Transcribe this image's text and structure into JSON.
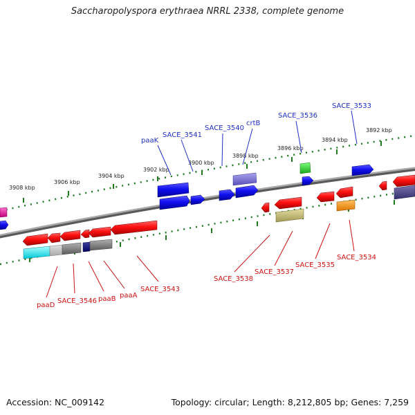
{
  "title": "Saccharopolyspora erythraea NRRL 2338, complete genome",
  "footer": {
    "accession": "Accession: NC_009142",
    "summary": "Topology: circular; Length: 8,212,805 bp; Genes: 7,259"
  },
  "colors": {
    "backbone": "#8a8a8a",
    "tick_track": "#1f7a1f",
    "label_forward": "#1f2fbf",
    "label_reverse": "#cc1111"
  },
  "ticks": [
    "3908 kbp",
    "3906 kbp",
    "3904 kbp",
    "3902 kbp",
    "3900 kbp",
    "3898 kbp",
    "3896 kbp",
    "3894 kbp",
    "3892 kbp"
  ],
  "upper_labels": [
    "paaK",
    "SACE_3541",
    "SACE_3540",
    "crtB",
    "SACE_3536",
    "SACE_3533"
  ],
  "lower_labels": [
    "paaD",
    "SACE_3546",
    "paaB",
    "paaA",
    "SACE_3543",
    "SACE_3538",
    "SACE_3537",
    "SACE_3535",
    "SACE_3534"
  ]
}
